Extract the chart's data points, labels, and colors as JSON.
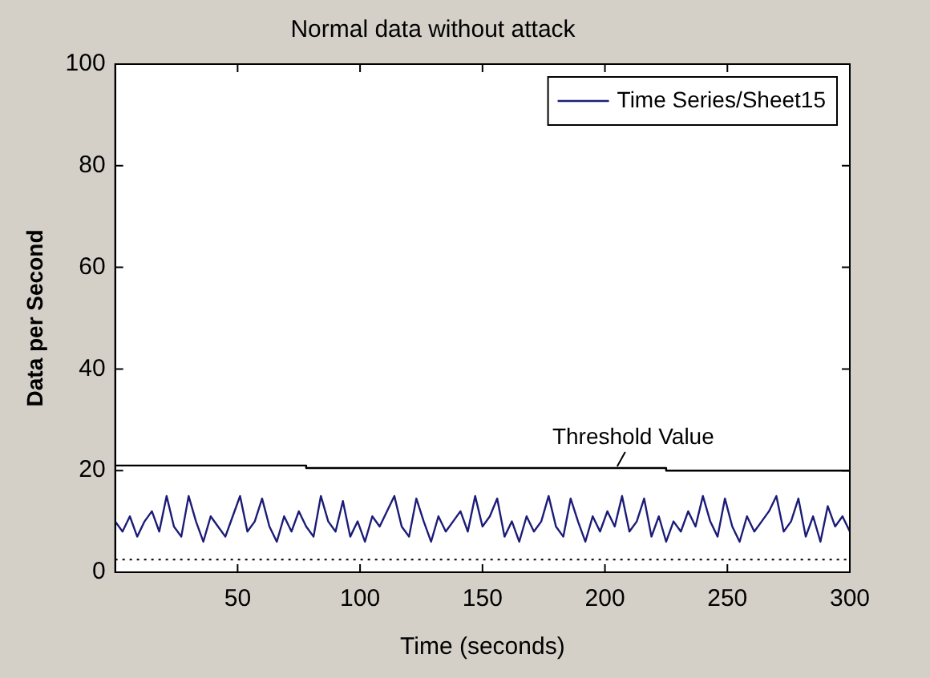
{
  "chart_data": {
    "type": "line",
    "title": "Normal data without attack",
    "xlabel": "Time (seconds)",
    "ylabel": "Data per Second",
    "xlim": [
      0,
      300
    ],
    "xticks": [
      50,
      100,
      150,
      200,
      250,
      300
    ],
    "ylim": [
      0,
      100
    ],
    "yticks": [
      0,
      20,
      40,
      60,
      80,
      100
    ],
    "grid": false,
    "legend": "top right",
    "marker": "none",
    "series": [
      {
        "name": "Time Series/Sheet15",
        "color": "#1c1c78",
        "x": [
          0,
          3,
          6,
          9,
          12,
          15,
          18,
          21,
          24,
          27,
          30,
          33,
          36,
          39,
          42,
          45,
          48,
          51,
          54,
          57,
          60,
          63,
          66,
          69,
          72,
          75,
          78,
          81,
          84,
          87,
          90,
          93,
          96,
          99,
          102,
          105,
          108,
          111,
          114,
          117,
          120,
          123,
          126,
          129,
          132,
          135,
          138,
          141,
          144,
          147,
          150,
          153,
          156,
          159,
          162,
          165,
          168,
          171,
          174,
          177,
          180,
          183,
          186,
          189,
          192,
          195,
          198,
          201,
          204,
          207,
          210,
          213,
          216,
          219,
          222,
          225,
          228,
          231,
          234,
          237,
          240,
          243,
          246,
          249,
          252,
          255,
          258,
          261,
          264,
          267,
          270,
          273,
          276,
          279,
          282,
          285,
          288,
          291,
          294,
          297,
          300
        ],
        "values": [
          10,
          8,
          11,
          7,
          10,
          12,
          8,
          15,
          9,
          7,
          15,
          10,
          6,
          11,
          9,
          7,
          11,
          15,
          8,
          10,
          14.5,
          9,
          6,
          11,
          8,
          12,
          9,
          7,
          15,
          10,
          8,
          14,
          7,
          10,
          6,
          11,
          9,
          12,
          15,
          9,
          7,
          14.5,
          10,
          6,
          11,
          8,
          10,
          12,
          8,
          15,
          9,
          11,
          14.5,
          7,
          10,
          6,
          11,
          8,
          10,
          15,
          9,
          7,
          14.5,
          10,
          6,
          11,
          8,
          12,
          9,
          15,
          8,
          10,
          14.5,
          7,
          11,
          6,
          10,
          8,
          12,
          9,
          15,
          10,
          7,
          14.5,
          9,
          6,
          11,
          8,
          10,
          12,
          15,
          8,
          10,
          14.5,
          7,
          11,
          6,
          13,
          9,
          11,
          8
        ]
      },
      {
        "color": "#000000",
        "x": [
          0,
          78,
          78,
          225,
          225,
          300
        ],
        "values": [
          21,
          21,
          20.5,
          20.5,
          20,
          20
        ]
      }
    ],
    "ref_lines": [
      {
        "axis": "y",
        "value": 2.5,
        "color": "#000000",
        "line_style": "dotted"
      }
    ],
    "annotations": [
      {
        "text": "Threshold Value",
        "x": 205,
        "y": 20.5
      }
    ]
  }
}
